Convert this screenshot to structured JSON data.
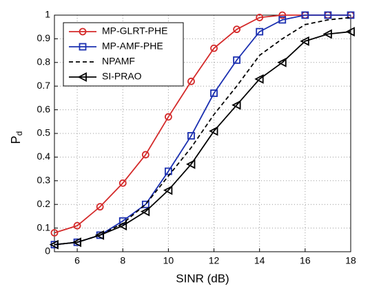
{
  "chart_data": {
    "type": "line",
    "x_label": "SINR (dB)",
    "y_label": "P",
    "y_label_sub": "d",
    "x": [
      5,
      6,
      7,
      8,
      9,
      10,
      11,
      12,
      13,
      14,
      15,
      16,
      17,
      18
    ],
    "series": [
      {
        "name": "MP-GLRT-PHE",
        "color": "#d42a2a",
        "marker": "circle",
        "linestyle": "solid",
        "values": [
          0.08,
          0.11,
          0.19,
          0.29,
          0.41,
          0.57,
          0.72,
          0.86,
          0.94,
          0.99,
          1.0,
          1.0,
          1.0,
          1.0
        ]
      },
      {
        "name": "MP-AMF-PHE",
        "color": "#1a2fb0",
        "marker": "square",
        "linestyle": "solid",
        "values": [
          0.03,
          0.04,
          0.07,
          0.13,
          0.2,
          0.34,
          0.49,
          0.67,
          0.81,
          0.93,
          0.98,
          1.0,
          1.0,
          1.0
        ]
      },
      {
        "name": "NPAMF",
        "color": "#000000",
        "marker": "none",
        "linestyle": "dashed",
        "values": [
          0.03,
          0.04,
          0.07,
          0.12,
          0.2,
          0.32,
          0.44,
          0.58,
          0.7,
          0.83,
          0.9,
          0.96,
          0.98,
          0.99
        ]
      },
      {
        "name": "SI-PRAO",
        "color": "#000000",
        "marker": "triangle-left",
        "linestyle": "solid",
        "values": [
          0.03,
          0.04,
          0.07,
          0.11,
          0.17,
          0.26,
          0.37,
          0.51,
          0.62,
          0.73,
          0.8,
          0.89,
          0.92,
          0.93
        ]
      }
    ],
    "xlim": [
      5,
      18
    ],
    "xticks": [
      6,
      8,
      10,
      12,
      14,
      16,
      18
    ],
    "ylim": [
      0,
      1
    ],
    "yticks": [
      0,
      0.1,
      0.2,
      0.3,
      0.4,
      0.5,
      0.6,
      0.7,
      0.8,
      0.9,
      1
    ],
    "grid": true,
    "legend": "upper-left"
  }
}
